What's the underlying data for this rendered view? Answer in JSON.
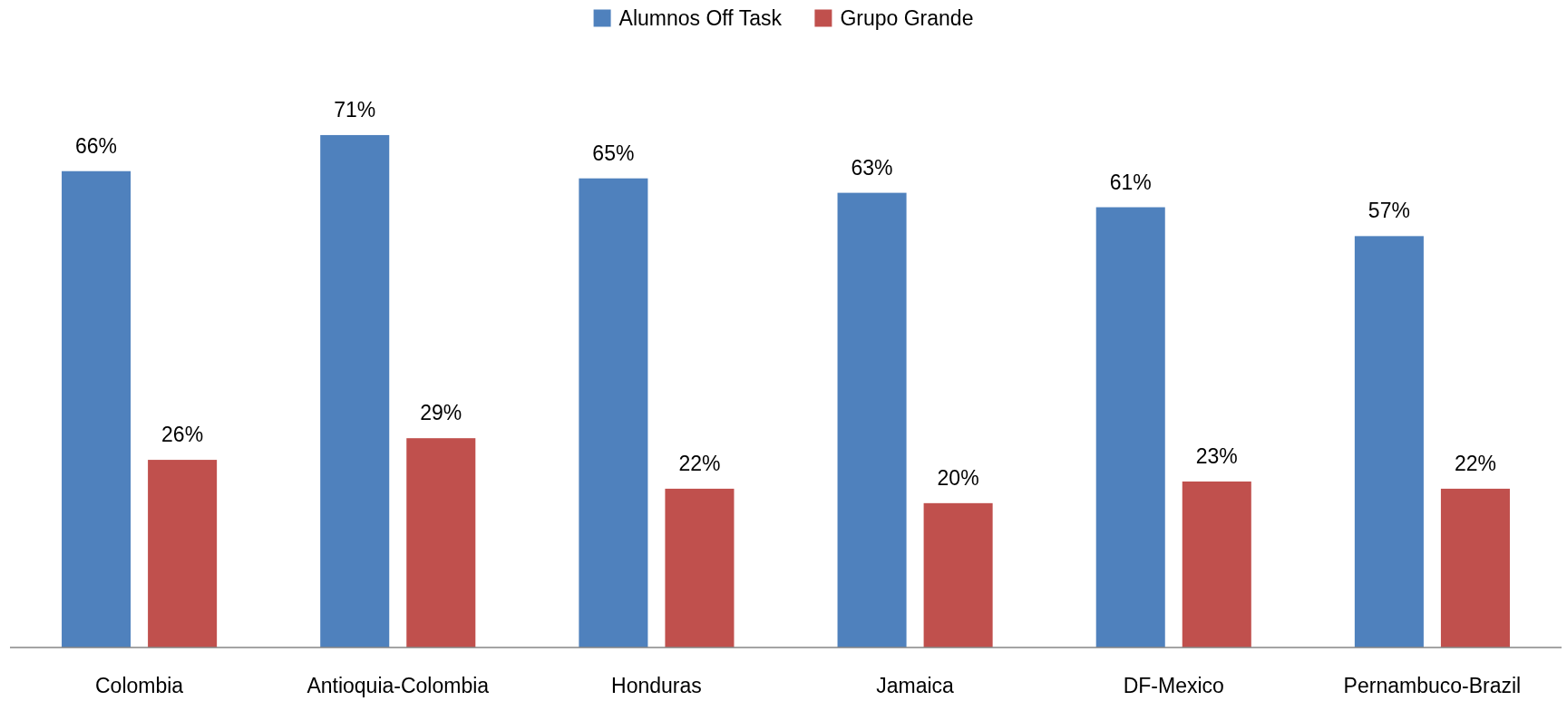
{
  "chart_data": {
    "type": "bar",
    "categories": [
      "Colombia",
      "Antioquia-Colombia",
      "Honduras",
      "Jamaica",
      "DF-Mexico",
      "Pernambuco-Brazil"
    ],
    "series": [
      {
        "name": "Alumnos Off Task",
        "color": "#4f81bd",
        "values": [
          66,
          71,
          65,
          63,
          61,
          57
        ],
        "value_labels": [
          "66%",
          "71%",
          "65%",
          "63%",
          "61%",
          "57%"
        ]
      },
      {
        "name": "Grupo Grande",
        "color": "#c0504d",
        "values": [
          26,
          29,
          22,
          20,
          23,
          22
        ],
        "value_labels": [
          "26%",
          "29%",
          "22%",
          "20%",
          "23%",
          "22%"
        ]
      }
    ],
    "legend": "top",
    "tick_labels": "x"
  }
}
